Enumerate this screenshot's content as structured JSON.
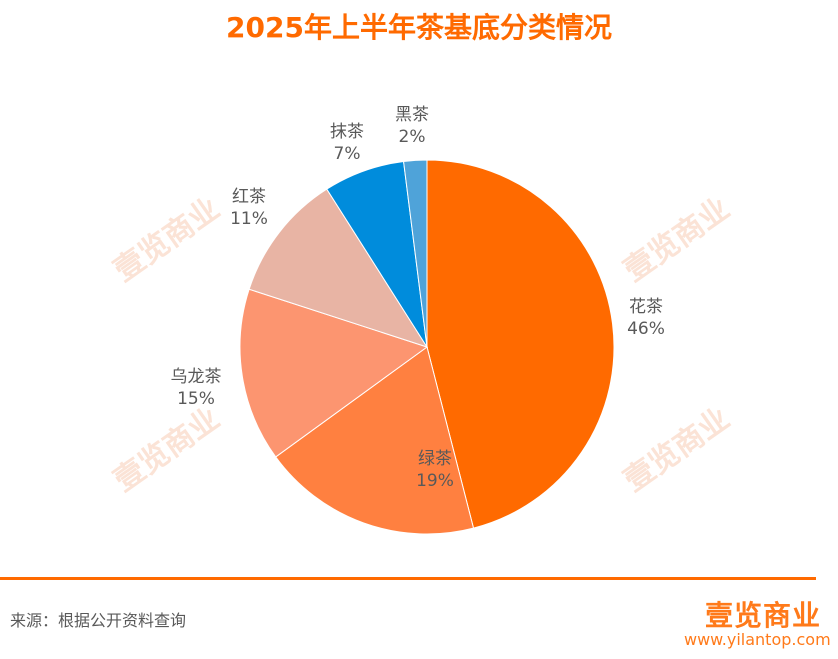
{
  "title": "2025年上半年茶基底分类情况",
  "chart_data": {
    "type": "pie",
    "title": "2025年上半年茶基底分类情况",
    "categories": [
      "花茶",
      "绿茶",
      "乌龙茶",
      "红茶",
      "抹茶",
      "黑茶"
    ],
    "values": [
      46,
      19,
      15,
      11,
      7,
      2
    ],
    "labels": [
      "46%",
      "19%",
      "15%",
      "11%",
      "7%",
      "2%"
    ],
    "colors": [
      "#ff6a00",
      "#ff8040",
      "#fc9570",
      "#e8b4a4",
      "#008cdc",
      "#4fa3d9"
    ],
    "start": "top",
    "direction": "clockwise"
  },
  "footer": {
    "source": "来源：根据公开资料查询",
    "logo": "壹览商业",
    "url": "www.yilantop.com"
  },
  "watermark": "壹览商业"
}
